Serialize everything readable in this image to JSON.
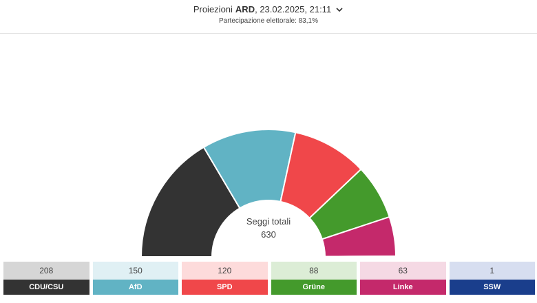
{
  "header": {
    "title_prefix": "Proiezioni",
    "title_source": "ARD",
    "title_suffix": ", 23.02.2025, 21:11",
    "subtitle": "Partecipazione elettorale: 83,1%"
  },
  "chart_data": {
    "type": "pie",
    "center_label_line1": "Seggi totali",
    "center_label_line2": "630",
    "categories": [
      "CDU/CSU",
      "AfD",
      "SPD",
      "Grüne",
      "Linke",
      "SSW"
    ],
    "values": [
      208,
      150,
      120,
      88,
      63,
      1
    ],
    "colors": [
      "#333333",
      "#61b3c4",
      "#f0474a",
      "#449a2c",
      "#c4296b",
      "#1a3e8c"
    ],
    "tint_colors": [
      "#d6d6d6",
      "#e0f0f4",
      "#fddbdb",
      "#dcedd6",
      "#f5d9e4",
      "#d7def0"
    ]
  }
}
